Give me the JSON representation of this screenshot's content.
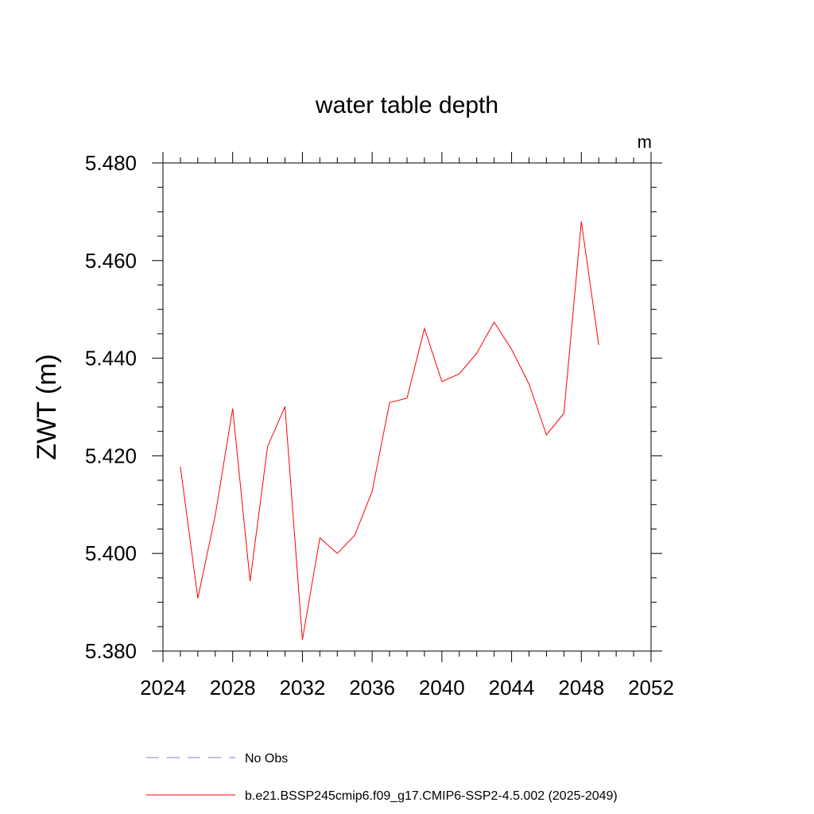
{
  "chart_data": {
    "type": "line",
    "title": "water table depth",
    "units": "m",
    "xlabel": "",
    "ylabel": "ZWT  (m)",
    "xlim": [
      2024,
      2052
    ],
    "ylim": [
      5.38,
      5.48
    ],
    "x_ticks": [
      "2024",
      "2028",
      "2032",
      "2036",
      "2040",
      "2044",
      "2048",
      "2052"
    ],
    "y_ticks": [
      "5.380",
      "5.400",
      "5.420",
      "5.440",
      "5.460",
      "5.480"
    ],
    "grid": false,
    "legend_position": "bottom",
    "series": [
      {
        "name": "No Obs",
        "color": "#7b7bd6",
        "style": "dashed",
        "x": [],
        "y": []
      },
      {
        "name": "b.e21.BSSP245cmip6.f09_g17.CMIP6-SSP2-4.5.002 (2025-2049)",
        "color": "#ff0000",
        "style": "solid",
        "x": [
          2025,
          2026,
          2027,
          2028,
          2029,
          2030,
          2031,
          2032,
          2033,
          2034,
          2035,
          2036,
          2037,
          2038,
          2039,
          2040,
          2041,
          2042,
          2043,
          2044,
          2045,
          2046,
          2047,
          2048,
          2049
        ],
        "y": [
          5.4178,
          5.3908,
          5.4078,
          5.4297,
          5.3943,
          5.4219,
          5.4301,
          5.3823,
          5.4032,
          5.4,
          5.4037,
          5.4127,
          5.4309,
          5.4318,
          5.4461,
          5.4352,
          5.4368,
          5.441,
          5.4474,
          5.4418,
          5.4347,
          5.4243,
          5.4287,
          5.468,
          5.4427
        ]
      }
    ]
  }
}
